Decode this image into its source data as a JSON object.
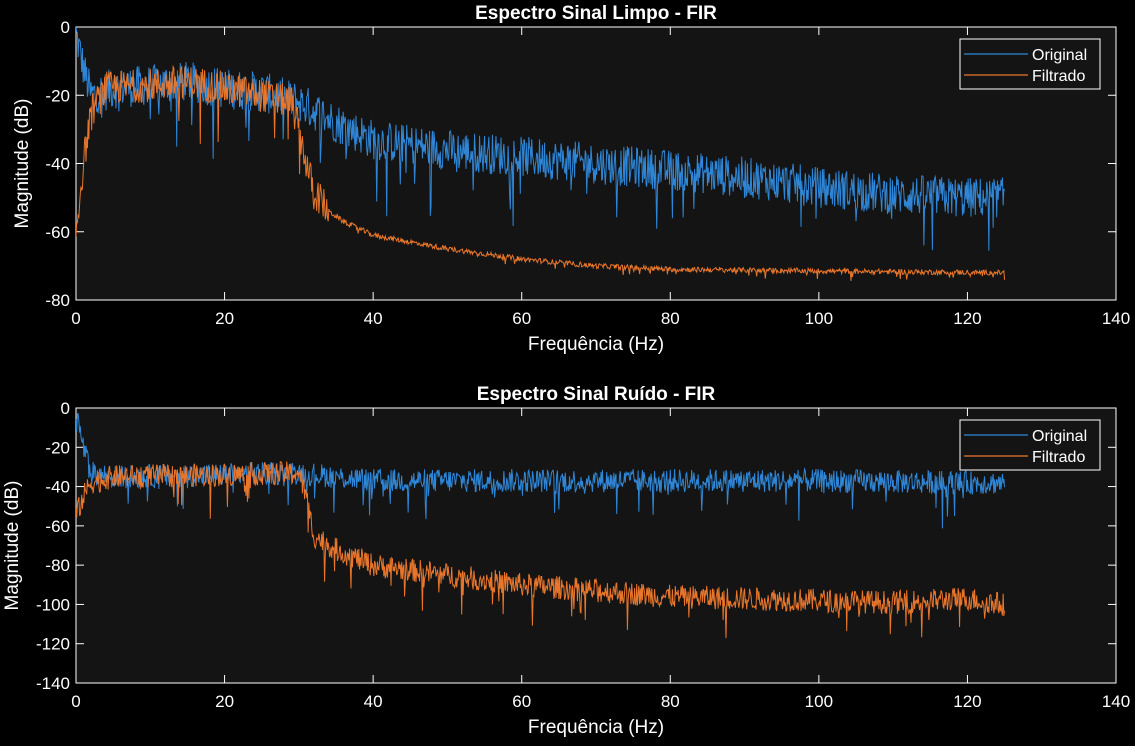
{
  "colors": {
    "background": "#000000",
    "axes_bg": "#141414",
    "axis": "#ffffff",
    "original": "#2f86d6",
    "filtrado": "#e8762c"
  },
  "chart_data": [
    {
      "type": "line",
      "title": "Espectro Sinal Limpo - FIR",
      "xlabel": "Frequência (Hz)",
      "ylabel": "Magnitude (dB)",
      "xlim": [
        0,
        140
      ],
      "ylim": [
        -80,
        0
      ],
      "xticks": [
        "0",
        "20",
        "40",
        "60",
        "80",
        "100",
        "120",
        "140"
      ],
      "yticks": [
        "0",
        "-20",
        "-40",
        "-60",
        "-80"
      ],
      "grid": false,
      "legend": "top-right",
      "x_range": [
        0,
        125
      ],
      "series": [
        {
          "name": "Original",
          "color": "#2f86d6",
          "noise_db": 6,
          "anchors": [
            [
              0,
              -2
            ],
            [
              1,
              -12
            ],
            [
              2,
              -20
            ],
            [
              5,
              -18
            ],
            [
              10,
              -17
            ],
            [
              15,
              -16
            ],
            [
              20,
              -18
            ],
            [
              25,
              -19
            ],
            [
              30,
              -22
            ],
            [
              35,
              -28
            ],
            [
              40,
              -33
            ],
            [
              50,
              -36
            ],
            [
              60,
              -38
            ],
            [
              70,
              -40
            ],
            [
              80,
              -42
            ],
            [
              90,
              -44
            ],
            [
              100,
              -47
            ],
            [
              110,
              -49
            ],
            [
              120,
              -50
            ],
            [
              125,
              -50
            ]
          ]
        },
        {
          "name": "Filtrado",
          "color": "#e8762c",
          "noise_db": 5,
          "anchors": [
            [
              0,
              -60
            ],
            [
              1,
              -40
            ],
            [
              2,
              -25
            ],
            [
              4,
              -18
            ],
            [
              10,
              -17
            ],
            [
              15,
              -16
            ],
            [
              20,
              -18
            ],
            [
              25,
              -20
            ],
            [
              29,
              -22
            ],
            [
              30,
              -30
            ],
            [
              31,
              -40
            ],
            [
              32,
              -48
            ],
            [
              34,
              -54
            ],
            [
              36,
              -57
            ],
            [
              40,
              -61
            ],
            [
              50,
              -65
            ],
            [
              60,
              -68
            ],
            [
              70,
              -70
            ],
            [
              80,
              -71
            ],
            [
              100,
              -71.5
            ],
            [
              125,
              -72
            ]
          ]
        }
      ]
    },
    {
      "type": "line",
      "title": "Espectro Sinal Ruído - FIR",
      "xlabel": "Frequência (Hz)",
      "ylabel": "Magnitude (dB)",
      "xlim": [
        0,
        140
      ],
      "ylim": [
        -140,
        0
      ],
      "xticks": [
        "0",
        "20",
        "40",
        "60",
        "80",
        "100",
        "120",
        "140"
      ],
      "yticks": [
        "0",
        "-20",
        "-40",
        "-60",
        "-80",
        "-100",
        "-120",
        "-140"
      ],
      "grid": false,
      "legend": "top-right",
      "x_range": [
        0,
        125
      ],
      "series": [
        {
          "name": "Original",
          "color": "#2f86d6",
          "noise_db": 6,
          "anchors": [
            [
              0,
              -2
            ],
            [
              1,
              -20
            ],
            [
              2,
              -33
            ],
            [
              5,
              -35
            ],
            [
              20,
              -34
            ],
            [
              30,
              -33
            ],
            [
              40,
              -37
            ],
            [
              60,
              -37
            ],
            [
              80,
              -37
            ],
            [
              100,
              -37
            ],
            [
              120,
              -38
            ],
            [
              125,
              -38
            ]
          ]
        },
        {
          "name": "Filtrado",
          "color": "#e8762c",
          "noise_db": 6,
          "anchors": [
            [
              0,
              -55
            ],
            [
              1,
              -45
            ],
            [
              2,
              -38
            ],
            [
              5,
              -35
            ],
            [
              20,
              -34
            ],
            [
              30,
              -33
            ],
            [
              31,
              -45
            ],
            [
              32,
              -65
            ],
            [
              35,
              -72
            ],
            [
              40,
              -80
            ],
            [
              50,
              -85
            ],
            [
              60,
              -90
            ],
            [
              70,
              -93
            ],
            [
              80,
              -96
            ],
            [
              90,
              -97
            ],
            [
              100,
              -98
            ],
            [
              110,
              -99
            ],
            [
              120,
              -97
            ],
            [
              125,
              -100
            ]
          ]
        }
      ]
    }
  ]
}
